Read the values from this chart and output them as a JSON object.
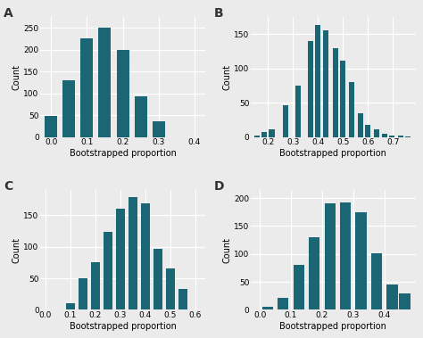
{
  "bar_color": "#1a6674",
  "background_color": "#ebebeb",
  "grid_color": "#ffffff",
  "panels": [
    {
      "label": "A",
      "xlim": [
        -0.03,
        0.43
      ],
      "ylim": [
        0,
        275
      ],
      "yticks": [
        0,
        50,
        100,
        150,
        200,
        250
      ],
      "xticks": [
        0.0,
        0.1,
        0.2,
        0.3,
        0.4
      ],
      "centers": [
        0.0,
        0.05,
        0.1,
        0.15,
        0.2,
        0.25,
        0.3
      ],
      "heights": [
        48,
        130,
        225,
        250,
        200,
        93,
        37
      ],
      "bar_width": 0.035
    },
    {
      "label": "B",
      "xlim": [
        0.13,
        0.79
      ],
      "ylim": [
        0,
        175
      ],
      "yticks": [
        0,
        50,
        100,
        150
      ],
      "xticks": [
        0.2,
        0.3,
        0.4,
        0.5,
        0.6,
        0.7
      ],
      "centers": [
        0.155,
        0.185,
        0.215,
        0.27,
        0.32,
        0.37,
        0.4,
        0.43,
        0.47,
        0.5,
        0.535,
        0.57,
        0.6,
        0.635,
        0.665,
        0.695,
        0.73,
        0.76
      ],
      "heights": [
        3,
        8,
        11,
        47,
        75,
        140,
        163,
        155,
        130,
        111,
        80,
        35,
        18,
        11,
        5,
        3,
        2,
        1
      ],
      "bar_width": 0.022
    },
    {
      "label": "C",
      "xlim": [
        -0.02,
        0.64
      ],
      "ylim": [
        0,
        190
      ],
      "yticks": [
        0,
        50,
        100,
        150
      ],
      "xticks": [
        0.0,
        0.1,
        0.2,
        0.3,
        0.4,
        0.5,
        0.6
      ],
      "centers": [
        0.1,
        0.15,
        0.2,
        0.25,
        0.3,
        0.35,
        0.4,
        0.45,
        0.5,
        0.55
      ],
      "heights": [
        10,
        50,
        75,
        123,
        160,
        178,
        168,
        97,
        65,
        33
      ],
      "bar_width": 0.035
    },
    {
      "label": "D",
      "xlim": [
        -0.03,
        0.5
      ],
      "ylim": [
        0,
        215
      ],
      "yticks": [
        0,
        50,
        100,
        150,
        200
      ],
      "xticks": [
        0.0,
        0.1,
        0.2,
        0.3,
        0.4
      ],
      "centers": [
        0.025,
        0.075,
        0.125,
        0.175,
        0.225,
        0.275,
        0.325,
        0.375,
        0.425,
        0.465
      ],
      "heights": [
        5,
        22,
        80,
        130,
        190,
        192,
        175,
        102,
        46,
        30
      ],
      "bar_width": 0.035
    }
  ]
}
